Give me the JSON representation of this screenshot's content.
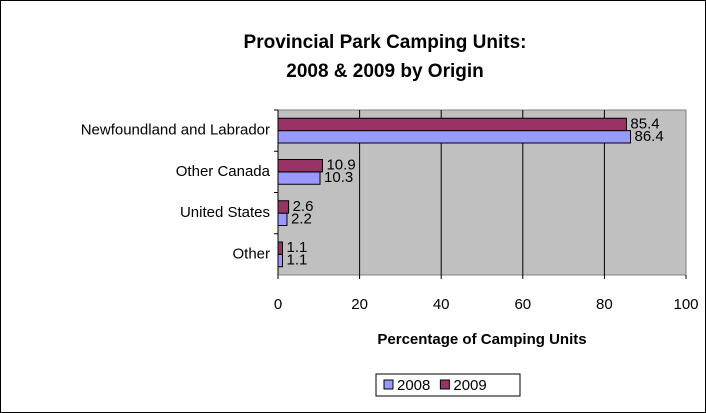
{
  "chart_data": {
    "type": "barh",
    "title": [
      "Provincial Park Camping Units:",
      "2008 & 2009 by Origin"
    ],
    "xlabel": "Percentage of Camping Units",
    "categories": [
      "Newfoundland and Labrador",
      "Other Canada",
      "United States",
      "Other"
    ],
    "series": [
      {
        "name": "2008",
        "color": "#9999ff",
        "values": [
          86.4,
          10.3,
          2.2,
          1.1
        ]
      },
      {
        "name": "2009",
        "color": "#993366",
        "values": [
          85.4,
          10.9,
          2.6,
          1.1
        ]
      }
    ],
    "xlim": [
      0,
      100
    ],
    "xticks": [
      0,
      20,
      40,
      60,
      80,
      100
    ],
    "grid": true,
    "legend": "bottom"
  }
}
